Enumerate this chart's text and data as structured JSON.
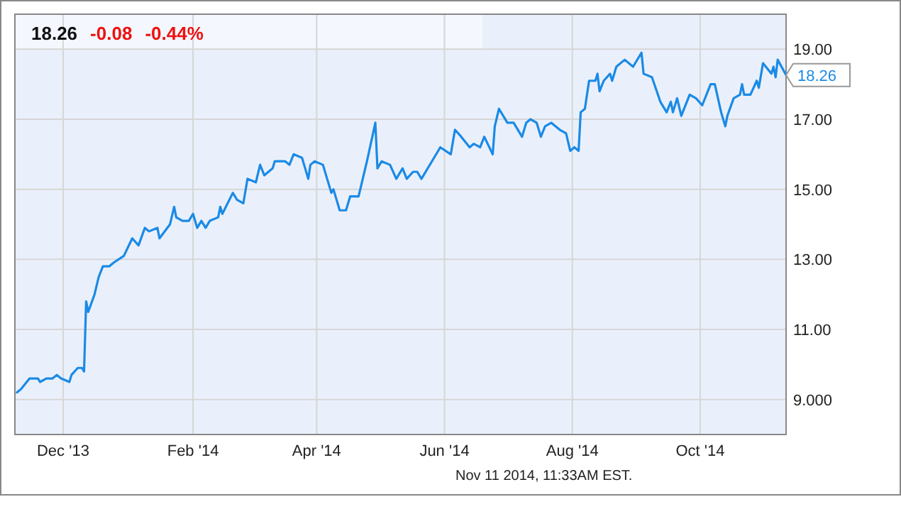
{
  "chart_data": {
    "type": "line",
    "grid": true,
    "marker": "none",
    "line_style": "solid",
    "xlim": [
      "2013-11-08",
      "2014-11-11"
    ],
    "xticks": [
      {
        "value": "2013-12-01",
        "label": "Dec '13"
      },
      {
        "value": "2014-02-01",
        "label": "Feb '14"
      },
      {
        "value": "2014-04-01",
        "label": "Apr '14"
      },
      {
        "value": "2014-06-01",
        "label": "Jun '14"
      },
      {
        "value": "2014-08-01",
        "label": "Aug '14"
      },
      {
        "value": "2014-10-01",
        "label": "Oct '14"
      }
    ],
    "ylim": [
      8,
      20
    ],
    "yticks": [
      {
        "value": 9,
        "label": "9.000"
      },
      {
        "value": 11,
        "label": "11.00"
      },
      {
        "value": 13,
        "label": "13.00"
      },
      {
        "value": 15,
        "label": "15.00"
      },
      {
        "value": 17,
        "label": "17.00"
      },
      {
        "value": 19,
        "label": "19.00"
      }
    ],
    "annotations": [
      "18.26",
      "-0.08",
      "-0.44%",
      {
        "text": "18.26",
        "x": "2014-11-11",
        "y": 18.26
      },
      "Nov 11 2014, 11:33AM EST."
    ],
    "series": [
      {
        "color": "#1a8ae6",
        "x": [
          "2013-11-09",
          "2013-11-11",
          "2013-11-15",
          "2013-11-19",
          "2013-11-20",
          "2013-11-23",
          "2013-11-26",
          "2013-11-28",
          "2013-11-30",
          "2013-12-04",
          "2013-12-05",
          "2013-12-08",
          "2013-12-10",
          "2013-12-11",
          "2013-12-12",
          "2013-12-13",
          "2013-12-16",
          "2013-12-18",
          "2013-12-20",
          "2013-12-23",
          "2013-12-25",
          "2013-12-30",
          "2014-01-03",
          "2014-01-06",
          "2014-01-09",
          "2014-01-11",
          "2014-01-15",
          "2014-01-16",
          "2014-01-21",
          "2014-01-23",
          "2014-01-24",
          "2014-01-27",
          "2014-01-30",
          "2014-02-01",
          "2014-02-03",
          "2014-02-05",
          "2014-02-07",
          "2014-02-09",
          "2014-02-13",
          "2014-02-14",
          "2014-02-15",
          "2014-02-20",
          "2014-02-22",
          "2014-02-25",
          "2014-02-27",
          "2014-03-03",
          "2014-03-05",
          "2014-03-07",
          "2014-03-11",
          "2014-03-12",
          "2014-03-14",
          "2014-03-17",
          "2014-03-19",
          "2014-03-21",
          "2014-03-25",
          "2014-03-26",
          "2014-03-28",
          "2014-03-29",
          "2014-03-31",
          "2014-04-04",
          "2014-04-06",
          "2014-04-08",
          "2014-04-09",
          "2014-04-12",
          "2014-04-15",
          "2014-04-17",
          "2014-04-21",
          "2014-04-25",
          "2014-04-29",
          "2014-04-30",
          "2014-05-02",
          "2014-05-06",
          "2014-05-09",
          "2014-05-12",
          "2014-05-14",
          "2014-05-17",
          "2014-05-19",
          "2014-05-21",
          "2014-05-26",
          "2014-05-30",
          "2014-06-04",
          "2014-06-06",
          "2014-06-09",
          "2014-06-13",
          "2014-06-15",
          "2014-06-18",
          "2014-06-20",
          "2014-06-24",
          "2014-06-25",
          "2014-06-27",
          "2014-07-01",
          "2014-07-04",
          "2014-07-08",
          "2014-07-10",
          "2014-07-12",
          "2014-07-15",
          "2014-07-17",
          "2014-07-19",
          "2014-07-22",
          "2014-07-26",
          "2014-07-29",
          "2014-07-31",
          "2014-08-02",
          "2014-08-04",
          "2014-08-05",
          "2014-08-07",
          "2014-08-09",
          "2014-08-12",
          "2014-08-13",
          "2014-08-14",
          "2014-08-16",
          "2014-08-19",
          "2014-08-20",
          "2014-08-22",
          "2014-08-26",
          "2014-08-30",
          "2014-09-03",
          "2014-09-04",
          "2014-09-08",
          "2014-09-12",
          "2014-09-15",
          "2014-09-17",
          "2014-09-18",
          "2014-09-20",
          "2014-09-22",
          "2014-09-26",
          "2014-09-29",
          "2014-10-02",
          "2014-10-06",
          "2014-10-08",
          "2014-10-11",
          "2014-10-13",
          "2014-10-14",
          "2014-10-17",
          "2014-10-20",
          "2014-10-21",
          "2014-10-22",
          "2014-10-25",
          "2014-10-28",
          "2014-10-29",
          "2014-10-31",
          "2014-11-04",
          "2014-11-05",
          "2014-11-06",
          "2014-11-07",
          "2014-11-11"
        ],
        "values": [
          9.2,
          9.3,
          9.6,
          9.6,
          9.5,
          9.6,
          9.6,
          9.7,
          9.6,
          9.5,
          9.7,
          9.9,
          9.9,
          9.8,
          11.8,
          11.5,
          12.0,
          12.5,
          12.8,
          12.8,
          12.9,
          13.1,
          13.6,
          13.4,
          13.9,
          13.8,
          13.9,
          13.6,
          14.0,
          14.5,
          14.2,
          14.1,
          14.1,
          14.3,
          13.9,
          14.1,
          13.9,
          14.1,
          14.2,
          14.5,
          14.3,
          14.9,
          14.7,
          14.6,
          15.3,
          15.2,
          15.7,
          15.4,
          15.6,
          15.8,
          15.8,
          15.8,
          15.7,
          16.0,
          15.9,
          15.7,
          15.3,
          15.7,
          15.8,
          15.7,
          15.3,
          14.9,
          15.0,
          14.4,
          14.4,
          14.8,
          14.8,
          15.8,
          16.9,
          15.6,
          15.8,
          15.7,
          15.3,
          15.6,
          15.3,
          15.5,
          15.5,
          15.3,
          15.8,
          16.2,
          16.0,
          16.7,
          16.5,
          16.2,
          16.3,
          16.2,
          16.5,
          16.0,
          16.8,
          17.3,
          16.9,
          16.9,
          16.5,
          16.9,
          17.0,
          16.9,
          16.5,
          16.8,
          16.9,
          16.7,
          16.6,
          16.1,
          16.2,
          16.1,
          17.2,
          17.3,
          18.1,
          18.1,
          18.3,
          17.8,
          18.1,
          18.3,
          18.1,
          18.5,
          18.7,
          18.5,
          18.9,
          18.3,
          18.2,
          17.5,
          17.2,
          17.5,
          17.2,
          17.6,
          17.1,
          17.7,
          17.6,
          17.4,
          18.0,
          18.0,
          17.2,
          16.8,
          17.1,
          17.6,
          17.7,
          18.0,
          17.7,
          17.7,
          18.1,
          17.9,
          18.6,
          18.3,
          18.5,
          18.2,
          18.7,
          18.26
        ]
      }
    ]
  }
}
